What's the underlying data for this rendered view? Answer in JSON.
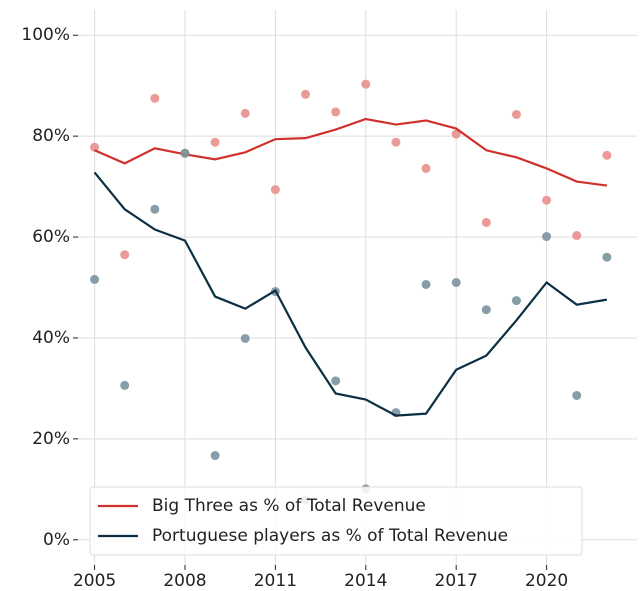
{
  "chart_data": {
    "type": "line",
    "x": [
      2005,
      2006,
      2007,
      2008,
      2009,
      2010,
      2011,
      2012,
      2013,
      2014,
      2015,
      2016,
      2017,
      2018,
      2019,
      2020,
      2021,
      2022
    ],
    "series": [
      {
        "name": "Big Three as % of Total Revenue",
        "color": "#d0312d",
        "point_color": "#e8908c",
        "values": [
          77.2,
          74.6,
          77.6,
          76.4,
          75.4,
          76.8,
          79.4,
          79.6,
          81.3,
          83.4,
          82.3,
          83.1,
          81.5,
          77.2,
          75.8,
          73.6,
          71.0,
          70.2
        ],
        "points": [
          77.8,
          56.5,
          87.5,
          76.6,
          78.8,
          84.5,
          69.4,
          88.3,
          84.8,
          90.3,
          78.8,
          73.6,
          80.4,
          62.9,
          84.3,
          67.3,
          60.3,
          76.2
        ]
      },
      {
        "name": "Portuguese players as % of Total Revenue",
        "color": "#0b2f45",
        "point_color": "#7a939f",
        "values": [
          72.8,
          65.5,
          61.5,
          59.3,
          48.2,
          45.8,
          49.4,
          38.1,
          29.0,
          27.8,
          24.6,
          25.0,
          33.7,
          36.5,
          43.5,
          51.0,
          46.6,
          47.6
        ],
        "points": [
          51.6,
          30.6,
          65.5,
          76.6,
          16.7,
          39.9,
          49.2,
          7.9,
          31.5,
          10.1,
          25.2,
          50.6,
          51.0,
          45.6,
          47.4,
          60.1,
          28.6,
          56.0
        ]
      }
    ],
    "xlim": [
      2004.45,
      2023.0
    ],
    "xticks": [
      2005,
      2008,
      2011,
      2014,
      2017,
      2020
    ],
    "ylim": [
      -5,
      105
    ],
    "yticks": [
      {
        "value": 0,
        "label": "0%"
      },
      {
        "value": 20,
        "label": "20%"
      },
      {
        "value": 40,
        "label": "40%"
      },
      {
        "value": 60,
        "label": "60%"
      },
      {
        "value": 80,
        "label": "80%"
      },
      {
        "value": 100,
        "label": "100%"
      }
    ],
    "grid": true,
    "legend": "lower left"
  }
}
